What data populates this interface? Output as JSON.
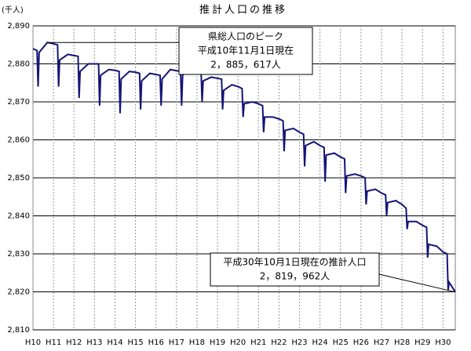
{
  "chart_data": {
    "type": "line",
    "title": "推計人口の推移",
    "y_label": "(千人)",
    "x": [
      10,
      10.2,
      10.25,
      10.3,
      10.7,
      11,
      11.2,
      11.25,
      11.3,
      11.7,
      12,
      12.2,
      12.25,
      12.3,
      12.7,
      13,
      13.2,
      13.25,
      13.3,
      13.7,
      14,
      14.2,
      14.25,
      14.3,
      14.7,
      15,
      15.2,
      15.25,
      15.3,
      15.7,
      16,
      16.2,
      16.25,
      16.3,
      16.7,
      17,
      17.2,
      17.25,
      17.3,
      17.7,
      18,
      18.2,
      18.25,
      18.3,
      18.7,
      19,
      19.2,
      19.25,
      19.3,
      19.7,
      20,
      20.2,
      20.25,
      20.3,
      20.7,
      21,
      21.2,
      21.25,
      21.3,
      21.7,
      22,
      22.2,
      22.25,
      22.3,
      22.7,
      23,
      23.2,
      23.25,
      23.3,
      23.7,
      24,
      24.2,
      24.25,
      24.3,
      24.7,
      25,
      25.2,
      25.25,
      25.3,
      25.7,
      26,
      26.2,
      26.25,
      26.3,
      26.7,
      27,
      27.2,
      27.25,
      27.3,
      27.7,
      28,
      28.2,
      28.25,
      28.3,
      28.7,
      29,
      29.2,
      29.25,
      29.3,
      29.7,
      30,
      30.2,
      30.25,
      30.3,
      30.6
    ],
    "values": [
      2884,
      2883.5,
      2874,
      2883,
      2885.617,
      2885.3,
      2885,
      2874,
      2881,
      2882.5,
      2882.2,
      2882,
      2871,
      2878,
      2880,
      2880,
      2880,
      2869,
      2877,
      2878.5,
      2878.3,
      2878,
      2867,
      2876,
      2878,
      2877.8,
      2877.5,
      2868,
      2875.5,
      2877.5,
      2877.2,
      2877,
      2869,
      2876,
      2878.5,
      2878.2,
      2878,
      2869,
      2877,
      2879,
      2878.5,
      2878,
      2870,
      2875.5,
      2876.5,
      2876.2,
      2876,
      2868,
      2873,
      2874.5,
      2874,
      2873.5,
      2866,
      2869.5,
      2870,
      2869.5,
      2869,
      2862,
      2866,
      2866,
      2865.5,
      2865,
      2857,
      2862.5,
      2863,
      2862,
      2861.5,
      2853,
      2858.5,
      2859.5,
      2858.5,
      2858,
      2849,
      2856,
      2856.5,
      2855.5,
      2855,
      2846,
      2850.5,
      2851,
      2850.5,
      2850,
      2843,
      2846.5,
      2847,
      2846,
      2845.5,
      2840,
      2843.5,
      2844,
      2843,
      2842,
      2836.5,
      2838.5,
      2838.5,
      2837.5,
      2837,
      2829,
      2832.5,
      2832,
      2830.5,
      2830,
      2820.5,
      2822.5,
      2819.962
    ],
    "color": "#141478",
    "xlim": [
      10,
      30.6
    ],
    "xticks": [
      {
        "value": 10,
        "label": "H10"
      },
      {
        "value": 11,
        "label": "H11"
      },
      {
        "value": 12,
        "label": "H12"
      },
      {
        "value": 13,
        "label": "H13"
      },
      {
        "value": 14,
        "label": "H14"
      },
      {
        "value": 15,
        "label": "H15"
      },
      {
        "value": 16,
        "label": "H16"
      },
      {
        "value": 17,
        "label": "H17"
      },
      {
        "value": 18,
        "label": "H18"
      },
      {
        "value": 19,
        "label": "H19"
      },
      {
        "value": 20,
        "label": "H20"
      },
      {
        "value": 21,
        "label": "H21"
      },
      {
        "value": 22,
        "label": "H22"
      },
      {
        "value": 23,
        "label": "H23"
      },
      {
        "value": 24,
        "label": "H24"
      },
      {
        "value": 25,
        "label": "H25"
      },
      {
        "value": 26,
        "label": "H26"
      },
      {
        "value": 27,
        "label": "H27"
      },
      {
        "value": 28,
        "label": "H28"
      },
      {
        "value": 29,
        "label": "H29"
      },
      {
        "value": 30,
        "label": "H30"
      }
    ],
    "ylim": [
      2810,
      2890
    ],
    "yticks": [
      {
        "value": 2810,
        "label": "2,810"
      },
      {
        "value": 2820,
        "label": "2,820"
      },
      {
        "value": 2830,
        "label": "2,830"
      },
      {
        "value": 2840,
        "label": "2,840"
      },
      {
        "value": 2850,
        "label": "2,850"
      },
      {
        "value": 2860,
        "label": "2,860"
      },
      {
        "value": 2870,
        "label": "2,870"
      },
      {
        "value": 2880,
        "label": "2,880"
      },
      {
        "value": 2890,
        "label": "2,890"
      }
    ],
    "grid": true,
    "annotations": [
      [
        "県総人口のピーク",
        "平成10年11月1日現在",
        "2，885，617人"
      ],
      [
        "平成30年10月1日現在の推計人口",
        "2，819，962人"
      ]
    ]
  }
}
